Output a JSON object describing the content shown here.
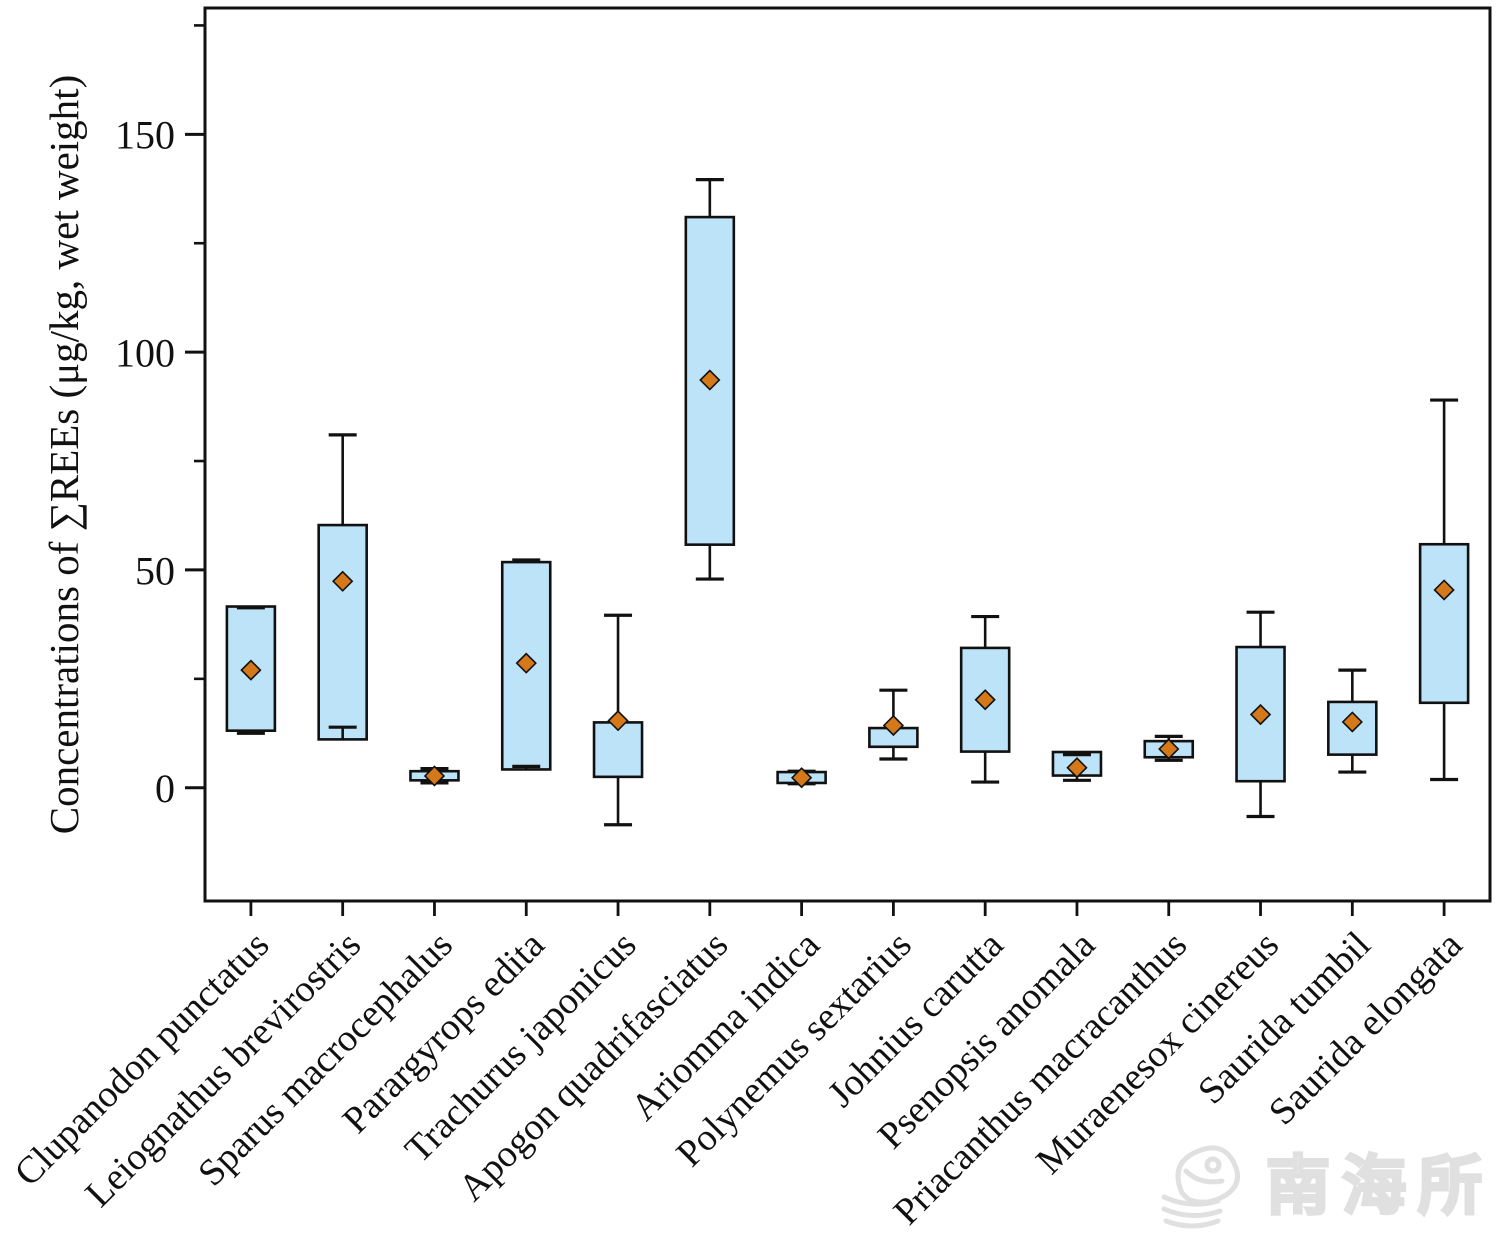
{
  "figure": {
    "background": "#ffffff",
    "frame_color": "#111111"
  },
  "watermark": {
    "text": "南海所",
    "icon": "fish-logo",
    "color": "#e0e0e0"
  },
  "chart_data": {
    "type": "box",
    "title": "",
    "xlabel": "",
    "ylabel": "Concentrations of ∑REEs (μg/kg, wet weight)",
    "ylim": [
      -26,
      179
    ],
    "yticks_major": [
      0,
      50,
      100,
      150
    ],
    "yticks_minor": [
      25,
      75,
      125,
      175
    ],
    "grid": false,
    "legend": "none",
    "box_style": {
      "fill": "#bce3f7",
      "stroke": "#111111",
      "mean_marker": "diamond",
      "mean_fill": "#d4781a",
      "whisker_rule": "mean ± SD",
      "box_rule": "25th–75th percentile"
    },
    "categories": [
      "Clupanodon punctatus",
      "Leiognathus brevirostris",
      "Sparus macrocephalus",
      "Parargyrops edita",
      "Trachurus japonicus",
      "Apogon quadrifasciatus",
      "Ariomma indica",
      "Polynemus sextarius",
      "Johnius carutta",
      "Psenopsis anomala",
      "Priacanthus macracanthus",
      "Muraenesox cinereus",
      "Saurida tumbil",
      "Saurida elongata"
    ],
    "series": [
      {
        "name": "Clupanodon punctatus",
        "q1": 13.1,
        "q3": 41.6,
        "mean": 27.0,
        "whisker_low": 12.5,
        "whisker_high": 41.3
      },
      {
        "name": "Leiognathus brevirostris",
        "q1": 11.1,
        "q3": 60.3,
        "mean": 47.4,
        "whisker_low": 13.9,
        "whisker_high": 81.0
      },
      {
        "name": "Sparus macrocephalus",
        "q1": 1.7,
        "q3": 3.8,
        "mean": 2.7,
        "whisker_low": 1.1,
        "whisker_high": 4.4
      },
      {
        "name": "Parargyrops edita",
        "q1": 4.2,
        "q3": 51.8,
        "mean": 28.6,
        "whisker_low": 4.9,
        "whisker_high": 52.3
      },
      {
        "name": "Trachurus japonicus",
        "q1": 2.5,
        "q3": 15.0,
        "mean": 15.4,
        "whisker_low": -8.5,
        "whisker_high": 39.6
      },
      {
        "name": "Apogon quadrifasciatus",
        "q1": 55.8,
        "q3": 131.0,
        "mean": 93.6,
        "whisker_low": 47.9,
        "whisker_high": 139.6
      },
      {
        "name": "Ariomma indica",
        "q1": 1.1,
        "q3": 3.6,
        "mean": 2.3,
        "whisker_low": 0.9,
        "whisker_high": 3.8
      },
      {
        "name": "Polynemus sextarius",
        "q1": 9.4,
        "q3": 13.7,
        "mean": 14.3,
        "whisker_low": 6.6,
        "whisker_high": 22.4
      },
      {
        "name": "Johnius carutta",
        "q1": 8.3,
        "q3": 32.1,
        "mean": 20.2,
        "whisker_low": 1.3,
        "whisker_high": 39.3
      },
      {
        "name": "Psenopsis anomala",
        "q1": 2.8,
        "q3": 8.2,
        "mean": 4.6,
        "whisker_low": 1.7,
        "whisker_high": 7.6
      },
      {
        "name": "Priacanthus macracanthus",
        "q1": 7.0,
        "q3": 10.7,
        "mean": 8.9,
        "whisker_low": 6.3,
        "whisker_high": 11.8
      },
      {
        "name": "Muraenesox cinereus",
        "q1": 1.5,
        "q3": 32.3,
        "mean": 16.8,
        "whisker_low": -6.6,
        "whisker_high": 40.3
      },
      {
        "name": "Saurida tumbil",
        "q1": 7.6,
        "q3": 19.7,
        "mean": 15.1,
        "whisker_low": 3.6,
        "whisker_high": 27.0
      },
      {
        "name": "Saurida elongata",
        "q1": 19.5,
        "q3": 55.9,
        "mean": 45.4,
        "whisker_low": 1.9,
        "whisker_high": 89.0
      }
    ]
  }
}
